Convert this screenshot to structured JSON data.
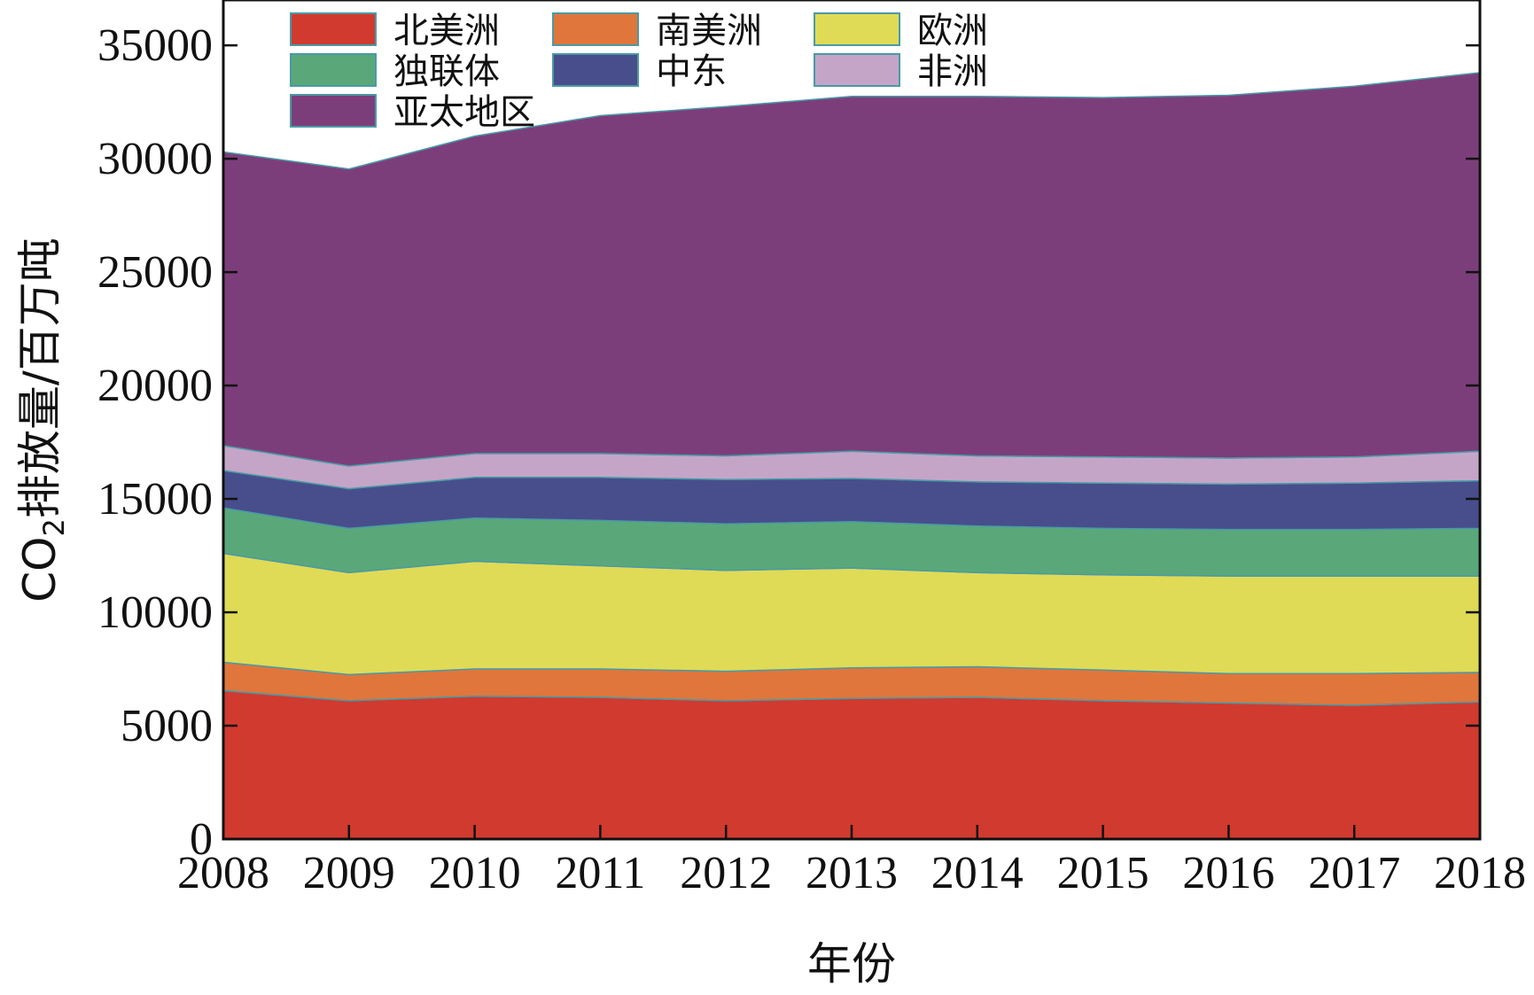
{
  "chart_data": {
    "type": "area",
    "stacked": true,
    "title": "",
    "xlabel": "年份",
    "ylabel_prefix": "CO",
    "ylabel_subscript": "2",
    "ylabel_suffix": "排放量/百万吨",
    "x": [
      "2008",
      "2009",
      "2010",
      "2011",
      "2012",
      "2013",
      "2014",
      "2015",
      "2016",
      "2017",
      "2018"
    ],
    "ylim": [
      0,
      37000
    ],
    "yticks": [
      0,
      5000,
      10000,
      15000,
      20000,
      25000,
      30000,
      35000
    ],
    "legend_position": "top-left",
    "series": [
      {
        "name": "北美洲",
        "color": "#d13a2f",
        "values": [
          6550,
          6100,
          6300,
          6250,
          6100,
          6200,
          6250,
          6100,
          6000,
          5900,
          6050
        ]
      },
      {
        "name": "南美洲",
        "color": "#e0763b",
        "values": [
          1250,
          1150,
          1200,
          1250,
          1300,
          1350,
          1350,
          1350,
          1300,
          1400,
          1300
        ]
      },
      {
        "name": "欧洲",
        "color": "#dfdb56",
        "values": [
          4800,
          4500,
          4750,
          4550,
          4450,
          4400,
          4150,
          4200,
          4300,
          4300,
          4250
        ]
      },
      {
        "name": "独联体",
        "color": "#5aa87a",
        "values": [
          2000,
          1950,
          1900,
          2000,
          2050,
          2050,
          2050,
          2050,
          2050,
          2050,
          2100
        ]
      },
      {
        "name": "中东",
        "color": "#484e8b",
        "values": [
          1650,
          1750,
          1800,
          1900,
          1950,
          1900,
          1950,
          2000,
          2000,
          2050,
          2100
        ]
      },
      {
        "name": "非洲",
        "color": "#c4a5c8",
        "values": [
          1100,
          1000,
          1050,
          1050,
          1050,
          1200,
          1150,
          1150,
          1150,
          1150,
          1300
        ]
      },
      {
        "name": "亚太地区",
        "color": "#7c3e7b",
        "values": [
          12950,
          13100,
          14000,
          14900,
          15400,
          15650,
          15850,
          15850,
          16000,
          16350,
          16700
        ]
      }
    ]
  }
}
